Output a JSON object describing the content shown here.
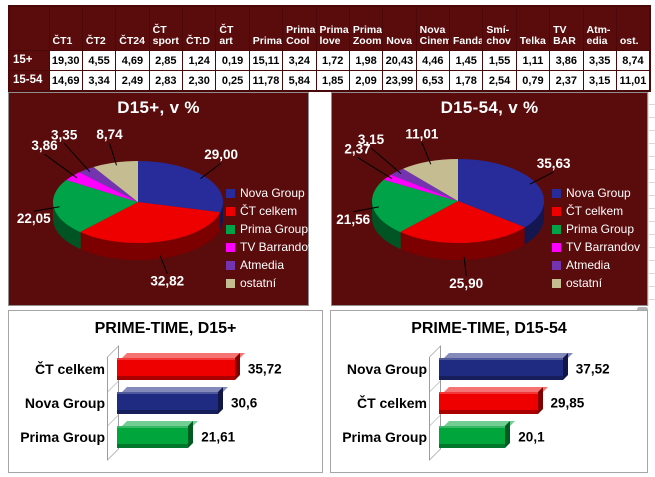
{
  "colors": {
    "panel_maroon": "#5a0b0c",
    "nova_navy": "#282c9a",
    "ct_red": "#ee0000",
    "prima_green": "#00a348",
    "barrandov_magenta": "#ff00ff",
    "atmedia_purple": "#7434b0",
    "ostatni_tan": "#c6bc92",
    "bar_navy": "#1f2b80",
    "bar_green": "#00a53c"
  },
  "chart_data": [
    {
      "type": "table",
      "row_labels": [
        "15+",
        "15-54"
      ],
      "columns": [
        "ČT1",
        "ČT2",
        "ČT24",
        "ČT\nsport",
        "ČT:D",
        "ČT\nart",
        "Prima",
        "Prima\nCool",
        "Prima\nlove",
        "Prima\nZoom",
        "Nova",
        "Nova\nCinema",
        "Fanda",
        "Smí-\nchov",
        "Telka",
        "TV\nBAR",
        "Atm-\nedia",
        "ost."
      ],
      "rows": [
        [
          "19,30",
          "4,55",
          "4,69",
          "2,85",
          "1,24",
          "0,19",
          "15,11",
          "3,24",
          "1,72",
          "1,98",
          "20,43",
          "4,46",
          "1,45",
          "1,55",
          "1,11",
          "3,86",
          "3,35",
          "8,74"
        ],
        [
          "14,69",
          "3,34",
          "2,49",
          "2,83",
          "2,30",
          "0,25",
          "11,78",
          "5,84",
          "1,85",
          "2,09",
          "23,99",
          "6,53",
          "1,78",
          "2,54",
          "0,79",
          "2,37",
          "3,15",
          "11,01"
        ]
      ]
    },
    {
      "type": "pie",
      "title": "D15+, v %",
      "legend_position": "right",
      "slices": [
        {
          "label": "Nova Group",
          "value": 29.0,
          "display": "29,00",
          "color": "#282c9a"
        },
        {
          "label": "ČT celkem",
          "value": 32.82,
          "display": "32,82",
          "color": "#ee0000"
        },
        {
          "label": "Prima Group",
          "value": 22.05,
          "display": "22,05",
          "color": "#00a348"
        },
        {
          "label": "TV Barrandov",
          "value": 3.86,
          "display": "3,86",
          "color": "#ff00ff"
        },
        {
          "label": "Atmedia",
          "value": 3.35,
          "display": "3,35",
          "color": "#7434b0"
        },
        {
          "label": "ostatní",
          "value": 8.74,
          "display": "8,74",
          "color": "#c6bc92"
        }
      ]
    },
    {
      "type": "pie",
      "title": "D15-54, v %",
      "legend_position": "right",
      "slices": [
        {
          "label": "Nova Group",
          "value": 35.63,
          "display": "35,63",
          "color": "#282c9a"
        },
        {
          "label": "ČT celkem",
          "value": 25.9,
          "display": "25,90",
          "color": "#ee0000"
        },
        {
          "label": "Prima Group",
          "value": 21.56,
          "display": "21,56",
          "color": "#00a348"
        },
        {
          "label": "TV Barrandov",
          "value": 2.37,
          "display": "2,37",
          "color": "#ff00ff"
        },
        {
          "label": "Atmedia",
          "value": 3.15,
          "display": "3,15",
          "color": "#7434b0"
        },
        {
          "label": "ostatní",
          "value": 11.01,
          "display": "11,01",
          "color": "#c6bc92"
        }
      ]
    },
    {
      "type": "bar",
      "title": "PRIME-TIME, D15+",
      "orientation": "horizontal",
      "xlim": [
        0,
        40
      ],
      "bars": [
        {
          "label": "ČT celkem",
          "value": 35.72,
          "display": "35,72",
          "color": "#ee0000"
        },
        {
          "label": "Nova Group",
          "value": 30.6,
          "display": "30,6",
          "color": "#1f2b80"
        },
        {
          "label": "Prima Group",
          "value": 21.61,
          "display": "21,61",
          "color": "#00a53c"
        }
      ]
    },
    {
      "type": "bar",
      "title": "PRIME-TIME, D15-54",
      "orientation": "horizontal",
      "xlim": [
        0,
        40
      ],
      "bars": [
        {
          "label": "Nova Group",
          "value": 37.52,
          "display": "37,52",
          "color": "#1f2b80"
        },
        {
          "label": "ČT celkem",
          "value": 29.85,
          "display": "29,85",
          "color": "#ee0000"
        },
        {
          "label": "Prima Group",
          "value": 20.1,
          "display": "20,1",
          "color": "#00a53c"
        }
      ]
    }
  ]
}
